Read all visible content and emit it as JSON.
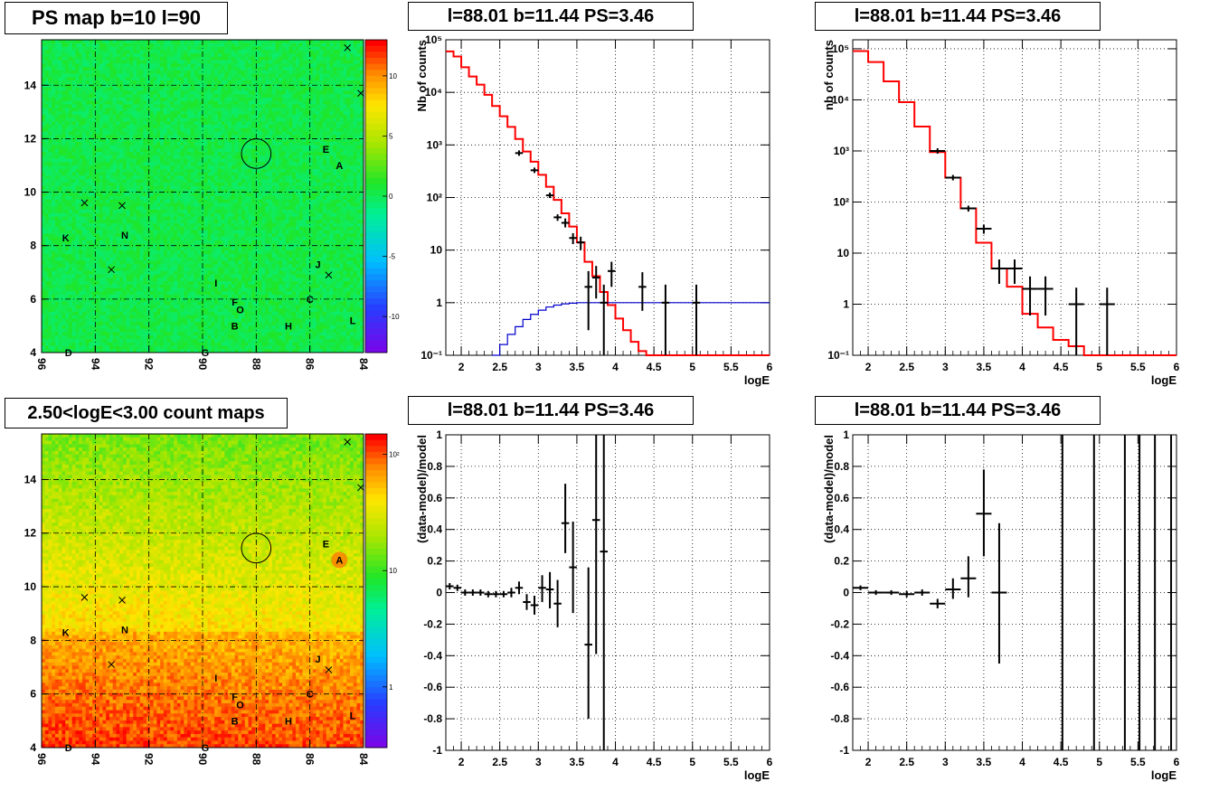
{
  "titles": {
    "map_ps": "PS map b=10 l=90",
    "spec_1": "l=88.01 b=11.44 PS=3.46",
    "spec_2": "l=88.01 b=11.44 PS=3.46",
    "map_count": "2.50<logE<3.00 count maps",
    "resid_1": "l=88.01 b=11.44 PS=3.46",
    "resid_2": "l=88.01 b=11.44 PS=3.46"
  },
  "colors": {
    "data": "#000000",
    "model": "#ff0000",
    "acceptance": "#0000cc"
  },
  "chart_data": [
    {
      "id": "ps_map",
      "type": "heatmap",
      "title": "PS map b=10 l=90",
      "xlabel": "",
      "ylabel": "",
      "xlim": [
        96,
        84
      ],
      "ylim": [
        4,
        15.7
      ],
      "xticks": [
        "96",
        "94",
        "92",
        "90",
        "88",
        "86",
        "84"
      ],
      "yticks": [
        "4",
        "6",
        "8",
        "10",
        "12",
        "14"
      ],
      "colorbar": {
        "min": -13,
        "max": 13,
        "ticks": [
          "10",
          "5",
          "0",
          "-5",
          "-10"
        ],
        "tick_values": [
          10,
          5,
          0,
          -5,
          -10
        ]
      },
      "circle": {
        "l": 88.0,
        "b": 11.44,
        "r": 0.55
      },
      "labels": [
        {
          "text": "A",
          "l": 84.9,
          "b": 11.0
        },
        {
          "text": "B",
          "l": 88.8,
          "b": 5.0
        },
        {
          "text": "C",
          "l": 86.0,
          "b": 6.0
        },
        {
          "text": "D",
          "l": 95.0,
          "b": 4.0
        },
        {
          "text": "E",
          "l": 85.4,
          "b": 11.6
        },
        {
          "text": "F",
          "l": 88.8,
          "b": 5.9
        },
        {
          "text": "G",
          "l": 89.9,
          "b": 4.0
        },
        {
          "text": "H",
          "l": 86.8,
          "b": 5.0
        },
        {
          "text": "I",
          "l": 89.5,
          "b": 6.6
        },
        {
          "text": "J",
          "l": 85.7,
          "b": 7.3
        },
        {
          "text": "K",
          "l": 95.1,
          "b": 8.3
        },
        {
          "text": "L",
          "l": 84.4,
          "b": 5.2
        },
        {
          "text": "N",
          "l": 92.9,
          "b": 8.4
        },
        {
          "text": "O",
          "l": 88.6,
          "b": 5.6
        }
      ],
      "crosses": [
        {
          "l": 84.6,
          "b": 15.4
        },
        {
          "l": 94.4,
          "b": 9.6
        },
        {
          "l": 93.0,
          "b": 9.5
        },
        {
          "l": 93.4,
          "b": 7.1
        },
        {
          "l": 85.3,
          "b": 6.9
        },
        {
          "l": 84.1,
          "b": 13.7
        }
      ]
    },
    {
      "id": "spectrum_1",
      "type": "line",
      "title": "l=88.01 b=11.44 PS=3.46",
      "xlabel": "logE",
      "ylabel": "Nb of counts",
      "xlim": [
        1.8,
        6.0
      ],
      "ylim": [
        0.1,
        100000
      ],
      "ylog": true,
      "xticks": [
        "2",
        "2.5",
        "3",
        "3.5",
        "4",
        "4.5",
        "5",
        "5.5",
        "6"
      ],
      "yticks": [
        "10^-1",
        "1",
        "10",
        "10^2",
        "10^3",
        "10^4",
        "10^5"
      ],
      "series": [
        {
          "name": "",
          "style": "step",
          "color": "#ff0000",
          "edges": [
            1.8,
            1.9,
            2.0,
            2.1,
            2.2,
            2.3,
            2.4,
            2.5,
            2.6,
            2.7,
            2.8,
            2.9,
            3.0,
            3.1,
            3.2,
            3.3,
            3.4,
            3.5,
            3.6,
            3.7,
            3.8,
            3.9,
            4.0,
            4.1,
            4.2,
            4.3,
            4.4,
            6.0
          ],
          "values": [
            60000,
            48000,
            30000,
            20000,
            14000,
            9000,
            5500,
            3500,
            2200,
            1300,
            750,
            480,
            270,
            160,
            90,
            50,
            28,
            14,
            6,
            3.2,
            1.6,
            0.9,
            0.5,
            0.3,
            0.18,
            0.12,
            0.1
          ]
        },
        {
          "name": "",
          "style": "step",
          "color": "#0000cc",
          "edges": [
            2.4,
            2.5,
            2.6,
            2.7,
            2.8,
            2.9,
            3.0,
            3.1,
            3.2,
            3.3,
            3.4,
            3.5,
            6.0
          ],
          "values": [
            0.1,
            0.16,
            0.25,
            0.35,
            0.48,
            0.6,
            0.72,
            0.83,
            0.9,
            0.95,
            0.98,
            1.0
          ]
        }
      ],
      "points": [
        {
          "x": 2.75,
          "y": 700,
          "xe": 0.05,
          "ylo": 700,
          "yhi": 700
        },
        {
          "x": 2.95,
          "y": 330,
          "xe": 0.05,
          "ylo": 330,
          "yhi": 330
        },
        {
          "x": 3.15,
          "y": 110,
          "xe": 0.05,
          "ylo": 110,
          "yhi": 110
        },
        {
          "x": 3.25,
          "y": 42,
          "xe": 0.05,
          "ylo": 36,
          "yhi": 48
        },
        {
          "x": 3.35,
          "y": 33,
          "xe": 0.05,
          "ylo": 27,
          "yhi": 40
        },
        {
          "x": 3.45,
          "y": 17,
          "xe": 0.05,
          "ylo": 13,
          "yhi": 21
        },
        {
          "x": 3.55,
          "y": 14,
          "xe": 0.05,
          "ylo": 10,
          "yhi": 18
        },
        {
          "x": 3.65,
          "y": 2,
          "xe": 0.05,
          "ylo": 0.3,
          "yhi": 4
        },
        {
          "x": 3.75,
          "y": 3,
          "xe": 0.05,
          "ylo": 1.2,
          "yhi": 5
        },
        {
          "x": 3.85,
          "y": 1,
          "xe": 0.05,
          "ylo": 0.1,
          "yhi": 2.2
        },
        {
          "x": 3.95,
          "y": 4,
          "xe": 0.05,
          "ylo": 2,
          "yhi": 6
        },
        {
          "x": 4.35,
          "y": 2,
          "xe": 0.05,
          "ylo": 0.7,
          "yhi": 3.8
        },
        {
          "x": 4.65,
          "y": 1,
          "xe": 0.05,
          "ylo": 0.1,
          "yhi": 2.2
        },
        {
          "x": 5.05,
          "y": 1,
          "xe": 0.05,
          "ylo": 0.1,
          "yhi": 2.2
        }
      ]
    },
    {
      "id": "spectrum_2",
      "type": "line",
      "title": "l=88.01 b=11.44 PS=3.46",
      "xlabel": "logE",
      "ylabel": "nb of counts",
      "xlim": [
        1.8,
        6.0
      ],
      "ylim": [
        0.1,
        150000
      ],
      "ylog": true,
      "xticks": [
        "2",
        "2.5",
        "3",
        "3.5",
        "4",
        "4.5",
        "5",
        "5.5",
        "6"
      ],
      "yticks": [
        "10^-1",
        "1",
        "10",
        "10^2",
        "10^3",
        "10^4",
        "10^5"
      ],
      "series": [
        {
          "name": "",
          "style": "step",
          "color": "#ff0000",
          "edges": [
            1.8,
            2.0,
            2.2,
            2.4,
            2.6,
            2.8,
            3.0,
            3.2,
            3.4,
            3.6,
            3.8,
            4.0,
            4.2,
            4.4,
            4.6,
            4.8,
            6.0
          ],
          "values": [
            90000,
            55000,
            23000,
            9000,
            3000,
            950,
            300,
            75,
            16,
            5,
            2.2,
            0.65,
            0.35,
            0.2,
            0.15,
            0.1
          ]
        }
      ],
      "points": [
        {
          "x": 2.9,
          "y": 1000,
          "xe": 0.1,
          "ylo": 1000,
          "yhi": 1000
        },
        {
          "x": 3.1,
          "y": 300,
          "xe": 0.1,
          "ylo": 300,
          "yhi": 300
        },
        {
          "x": 3.3,
          "y": 75,
          "xe": 0.1,
          "ylo": 65,
          "yhi": 85
        },
        {
          "x": 3.5,
          "y": 30,
          "xe": 0.1,
          "ylo": 24,
          "yhi": 36
        },
        {
          "x": 3.7,
          "y": 5,
          "xe": 0.1,
          "ylo": 2.5,
          "yhi": 7.5
        },
        {
          "x": 3.9,
          "y": 5,
          "xe": 0.1,
          "ylo": 2.5,
          "yhi": 7.5
        },
        {
          "x": 4.1,
          "y": 2,
          "xe": 0.1,
          "ylo": 0.6,
          "yhi": 3.5
        },
        {
          "x": 4.3,
          "y": 2,
          "xe": 0.1,
          "ylo": 0.6,
          "yhi": 3.5
        },
        {
          "x": 4.7,
          "y": 1,
          "xe": 0.1,
          "ylo": 0.1,
          "yhi": 2.1
        },
        {
          "x": 5.1,
          "y": 1,
          "xe": 0.1,
          "ylo": 0.1,
          "yhi": 2.1
        }
      ]
    },
    {
      "id": "count_map",
      "type": "heatmap",
      "title": "2.50<logE<3.00 count maps",
      "xlabel": "",
      "ylabel": "",
      "xlim": [
        96,
        84
      ],
      "ylim": [
        4,
        15.7
      ],
      "xticks": [
        "96",
        "94",
        "92",
        "90",
        "88",
        "86",
        "84"
      ],
      "yticks": [
        "4",
        "6",
        "8",
        "10",
        "12",
        "14"
      ],
      "colorbar": {
        "log": true,
        "min": 0.3,
        "max": 150,
        "ticks": [
          "10²",
          "10",
          "1"
        ],
        "tick_values": [
          100,
          10,
          1
        ]
      },
      "circle": {
        "l": 88.0,
        "b": 11.44,
        "r": 0.55
      },
      "labels": [
        {
          "text": "A",
          "l": 84.9,
          "b": 11.0
        },
        {
          "text": "B",
          "l": 88.8,
          "b": 5.0
        },
        {
          "text": "C",
          "l": 86.0,
          "b": 6.0
        },
        {
          "text": "D",
          "l": 95.0,
          "b": 4.0
        },
        {
          "text": "E",
          "l": 85.4,
          "b": 11.6
        },
        {
          "text": "F",
          "l": 88.8,
          "b": 5.9
        },
        {
          "text": "G",
          "l": 89.9,
          "b": 4.0
        },
        {
          "text": "H",
          "l": 86.8,
          "b": 5.0
        },
        {
          "text": "I",
          "l": 89.5,
          "b": 6.6
        },
        {
          "text": "J",
          "l": 85.7,
          "b": 7.3
        },
        {
          "text": "K",
          "l": 95.1,
          "b": 8.3
        },
        {
          "text": "L",
          "l": 84.4,
          "b": 5.2
        },
        {
          "text": "N",
          "l": 92.9,
          "b": 8.4
        },
        {
          "text": "O",
          "l": 88.6,
          "b": 5.6
        }
      ],
      "crosses": [
        {
          "l": 84.6,
          "b": 15.4
        },
        {
          "l": 94.4,
          "b": 9.6
        },
        {
          "l": 93.0,
          "b": 9.5
        },
        {
          "l": 93.4,
          "b": 7.1
        },
        {
          "l": 85.3,
          "b": 6.9
        },
        {
          "l": 84.1,
          "b": 13.7
        }
      ]
    },
    {
      "id": "residual_1",
      "type": "scatter",
      "title": "l=88.01 b=11.44 PS=3.46",
      "xlabel": "logE",
      "ylabel": "(data-model)/model",
      "xlim": [
        1.8,
        6.0
      ],
      "ylim": [
        -1,
        1
      ],
      "xticks": [
        "2",
        "2.5",
        "3",
        "3.5",
        "4",
        "4.5",
        "5",
        "5.5",
        "6"
      ],
      "yticks": [
        "-1",
        "-0.8",
        "-0.6",
        "-0.4",
        "-0.2",
        "0",
        "0.2",
        "0.4",
        "0.6",
        "0.8",
        "1"
      ],
      "points": [
        {
          "x": 1.85,
          "y": 0.04,
          "xe": 0.05,
          "ylo": 0.02,
          "yhi": 0.06
        },
        {
          "x": 1.95,
          "y": 0.03,
          "xe": 0.05,
          "ylo": 0.01,
          "yhi": 0.05
        },
        {
          "x": 2.05,
          "y": 0.0,
          "xe": 0.05,
          "ylo": -0.02,
          "yhi": 0.02
        },
        {
          "x": 2.15,
          "y": 0.0,
          "xe": 0.05,
          "ylo": -0.02,
          "yhi": 0.02
        },
        {
          "x": 2.25,
          "y": 0.0,
          "xe": 0.05,
          "ylo": -0.02,
          "yhi": 0.02
        },
        {
          "x": 2.35,
          "y": -0.01,
          "xe": 0.05,
          "ylo": -0.03,
          "yhi": 0.01
        },
        {
          "x": 2.45,
          "y": -0.01,
          "xe": 0.05,
          "ylo": -0.03,
          "yhi": 0.01
        },
        {
          "x": 2.55,
          "y": -0.01,
          "xe": 0.05,
          "ylo": -0.03,
          "yhi": 0.01
        },
        {
          "x": 2.65,
          "y": 0.0,
          "xe": 0.05,
          "ylo": -0.03,
          "yhi": 0.03
        },
        {
          "x": 2.75,
          "y": 0.03,
          "xe": 0.05,
          "ylo": -0.01,
          "yhi": 0.07
        },
        {
          "x": 2.85,
          "y": -0.06,
          "xe": 0.05,
          "ylo": -0.11,
          "yhi": -0.01
        },
        {
          "x": 2.95,
          "y": -0.08,
          "xe": 0.05,
          "ylo": -0.14,
          "yhi": -0.02
        },
        {
          "x": 3.05,
          "y": 0.03,
          "xe": 0.05,
          "ylo": -0.06,
          "yhi": 0.11
        },
        {
          "x": 3.15,
          "y": 0.02,
          "xe": 0.05,
          "ylo": -0.1,
          "yhi": 0.13
        },
        {
          "x": 3.25,
          "y": -0.07,
          "xe": 0.05,
          "ylo": -0.22,
          "yhi": 0.08
        },
        {
          "x": 3.35,
          "y": 0.44,
          "xe": 0.05,
          "ylo": 0.25,
          "yhi": 0.69
        },
        {
          "x": 3.45,
          "y": 0.16,
          "xe": 0.05,
          "ylo": -0.13,
          "yhi": 0.45
        },
        {
          "x": 3.65,
          "y": -0.33,
          "xe": 0.05,
          "ylo": -0.8,
          "yhi": 0.16
        },
        {
          "x": 3.75,
          "y": 0.46,
          "xe": 0.05,
          "ylo": -0.39,
          "yhi": 1.0
        },
        {
          "x": 3.85,
          "y": 0.26,
          "xe": 0.05,
          "ylo": -1.0,
          "yhi": 1.0
        }
      ]
    },
    {
      "id": "residual_2",
      "type": "scatter",
      "title": "l=88.01 b=11.44 PS=3.46",
      "xlabel": "logE",
      "ylabel": "(data-model)/model",
      "xlim": [
        1.8,
        6.0
      ],
      "ylim": [
        -1,
        1
      ],
      "xticks": [
        "2",
        "2.5",
        "3",
        "3.5",
        "4",
        "4.5",
        "5",
        "5.5",
        "6"
      ],
      "yticks": [
        "-1",
        "-0.8",
        "-0.6",
        "-0.4",
        "-0.2",
        "0",
        "0.2",
        "0.4",
        "0.6",
        "0.8",
        "1"
      ],
      "points": [
        {
          "x": 1.9,
          "y": 0.03,
          "xe": 0.1,
          "ylo": 0.015,
          "yhi": 0.045
        },
        {
          "x": 2.1,
          "y": 0.0,
          "xe": 0.1,
          "ylo": -0.015,
          "yhi": 0.015
        },
        {
          "x": 2.3,
          "y": 0.0,
          "xe": 0.1,
          "ylo": -0.015,
          "yhi": 0.015
        },
        {
          "x": 2.5,
          "y": -0.01,
          "xe": 0.1,
          "ylo": -0.03,
          "yhi": 0.01
        },
        {
          "x": 2.7,
          "y": 0.0,
          "xe": 0.1,
          "ylo": -0.02,
          "yhi": 0.02
        },
        {
          "x": 2.9,
          "y": -0.07,
          "xe": 0.1,
          "ylo": -0.1,
          "yhi": -0.04
        },
        {
          "x": 3.1,
          "y": 0.02,
          "xe": 0.1,
          "ylo": -0.04,
          "yhi": 0.09
        },
        {
          "x": 3.3,
          "y": 0.09,
          "xe": 0.1,
          "ylo": -0.03,
          "yhi": 0.23
        },
        {
          "x": 3.5,
          "y": 0.5,
          "xe": 0.1,
          "ylo": 0.23,
          "yhi": 0.78
        },
        {
          "x": 3.7,
          "y": 0.0,
          "xe": 0.1,
          "ylo": -0.45,
          "yhi": 0.44
        }
      ],
      "vlines": [
        4.52,
        4.93,
        5.33,
        5.52,
        5.72,
        5.93
      ]
    }
  ]
}
